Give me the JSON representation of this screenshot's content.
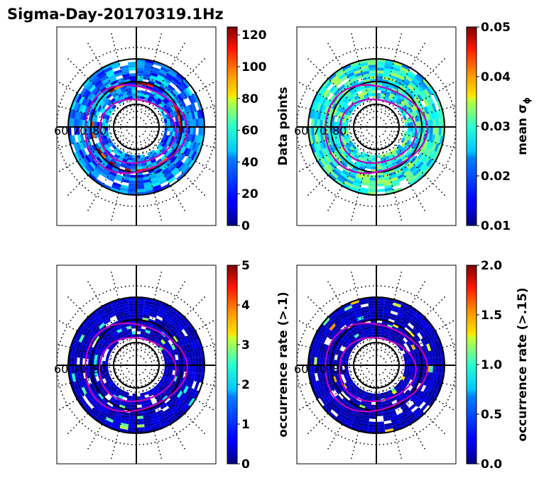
{
  "title": "Sigma-Day-20170319.1Hz",
  "chart_data": [
    {
      "type": "heatmap",
      "projection": "polar",
      "position": "top-left",
      "lat_labels": [
        "60",
        "70",
        "80"
      ],
      "colorbar": {
        "label": "Data points",
        "cmap": "jet",
        "range": [
          0,
          125
        ],
        "ticks": [
          "0",
          "20",
          "40",
          "60",
          "80",
          "100",
          "120"
        ],
        "tick_values": [
          0,
          20,
          40,
          60,
          80,
          100,
          120
        ]
      }
    },
    {
      "type": "heatmap",
      "projection": "polar",
      "position": "top-right",
      "lat_labels": [
        "60",
        "70",
        "80"
      ],
      "colorbar": {
        "label": "mean σ_φ",
        "label_main": "mean σ",
        "label_sub": "ϕ",
        "cmap": "jet",
        "range": [
          0.01,
          0.05
        ],
        "ticks": [
          "0.01",
          "0.02",
          "0.03",
          "0.04",
          "0.05"
        ],
        "tick_values": [
          0.01,
          0.02,
          0.03,
          0.04,
          0.05
        ]
      }
    },
    {
      "type": "heatmap",
      "projection": "polar",
      "position": "bottom-left",
      "lat_labels": [
        "60",
        "70",
        "80"
      ],
      "colorbar": {
        "label": "occurrence rate (>.1)",
        "cmap": "jet",
        "range": [
          0,
          5
        ],
        "ticks": [
          "0",
          "1",
          "2",
          "3",
          "4",
          "5"
        ],
        "tick_values": [
          0,
          1,
          2,
          3,
          4,
          5
        ]
      }
    },
    {
      "type": "heatmap",
      "projection": "polar",
      "position": "bottom-right",
      "lat_labels": [
        "60",
        "70",
        "80"
      ],
      "colorbar": {
        "label": "occurrence rate (>.15)",
        "cmap": "jet",
        "range": [
          0,
          2
        ],
        "ticks": [
          "0.0",
          "0.5",
          "1.0",
          "1.5",
          "2.0"
        ],
        "tick_values": [
          0,
          0.5,
          1.0,
          1.5,
          2.0
        ]
      }
    }
  ],
  "colors": {
    "oval": "#c000c0",
    "grid": "#000000"
  }
}
